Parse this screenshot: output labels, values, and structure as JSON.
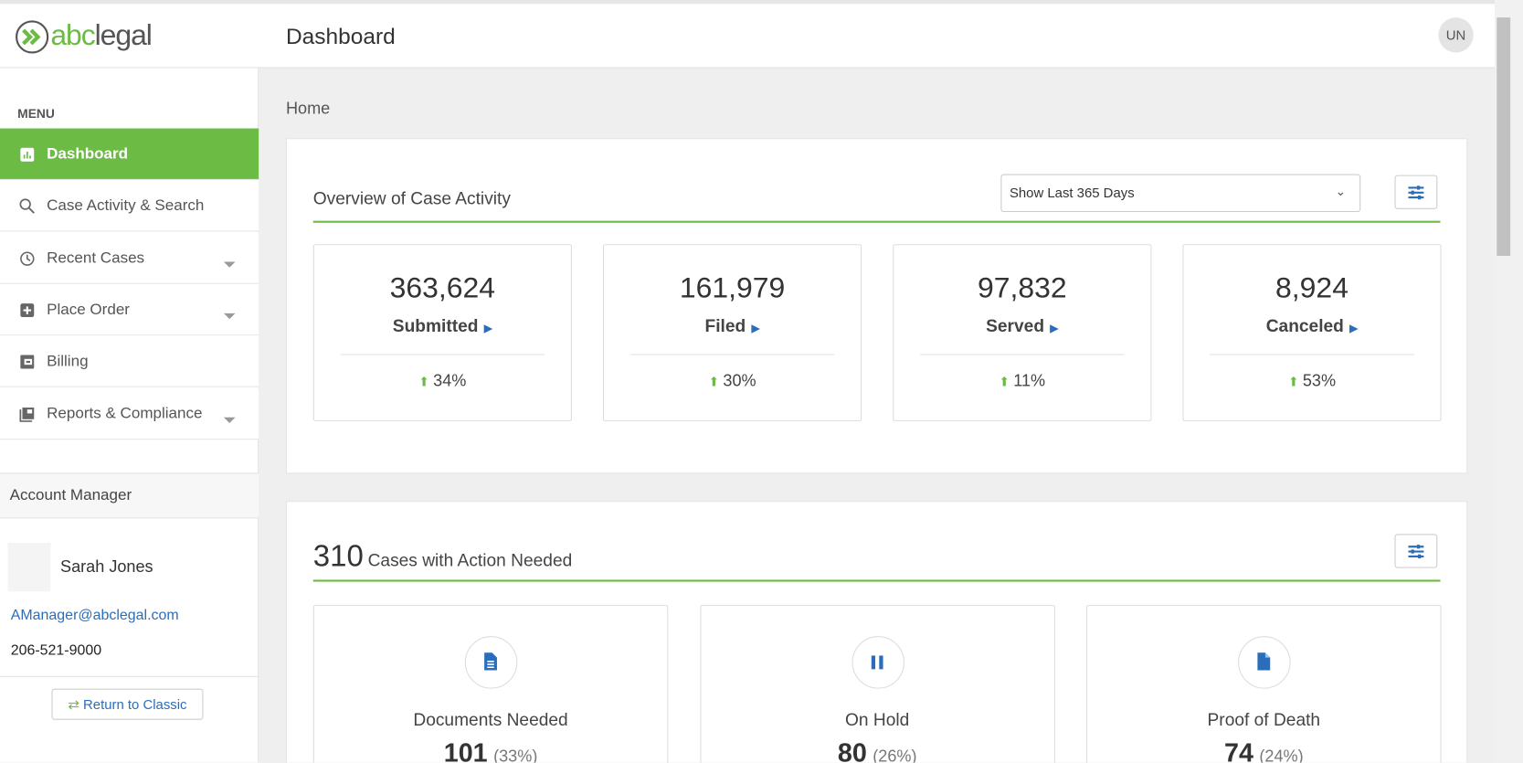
{
  "header": {
    "logo": {
      "accent": "abc",
      "rest": "legal"
    },
    "title": "Dashboard",
    "avatar": "UN"
  },
  "sidebar": {
    "menu_label": "MENU",
    "items": [
      "Dashboard",
      "Case Activity & Search",
      "Recent Cases",
      "Place Order",
      "Billing",
      "Reports & Compliance"
    ]
  },
  "account_manager": {
    "heading": "Account Manager",
    "name": "Sarah Jones",
    "email": "AManager@abclegal.com",
    "phone": "206-521-9000",
    "button": "Return to Classic"
  },
  "breadcrumb": "Home",
  "overview": {
    "title": "Overview of Case Activity",
    "range": "Show Last 365 Days",
    "stats": [
      {
        "value": "363,624",
        "label": "Submitted",
        "change": "34%"
      },
      {
        "value": "161,979",
        "label": "Filed",
        "change": "30%"
      },
      {
        "value": "97,832",
        "label": "Served",
        "change": "11%"
      },
      {
        "value": "8,924",
        "label": "Canceled",
        "change": "53%"
      }
    ]
  },
  "action_needed": {
    "count": "310",
    "title": "Cases with Action Needed",
    "cards": [
      {
        "label": "Documents Needed",
        "count": "101",
        "share": "(33%)"
      },
      {
        "label": "On Hold",
        "count": "80",
        "share": "(26%)"
      },
      {
        "label": "Proof of Death",
        "count": "74",
        "share": "(24%)"
      }
    ]
  }
}
